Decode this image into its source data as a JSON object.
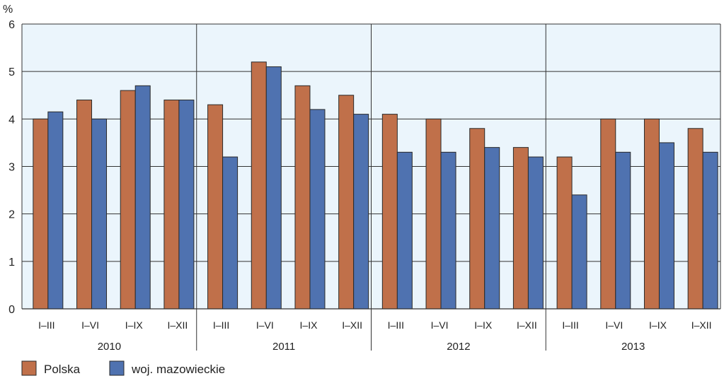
{
  "chart_data": {
    "type": "bar",
    "ylabel": "%",
    "ylim": [
      0,
      6
    ],
    "yticks": [
      "0",
      "1",
      "2",
      "3",
      "4",
      "5",
      "6"
    ],
    "grid": true,
    "legend_position": "bottom-left",
    "groups": [
      {
        "label": "2010",
        "categories": [
          "I–III",
          "I–VI",
          "I–IX",
          "I–XII"
        ]
      },
      {
        "label": "2011",
        "categories": [
          "I–III",
          "I–VI",
          "I–IX",
          "I–XII"
        ]
      },
      {
        "label": "2012",
        "categories": [
          "I–III",
          "I–VI",
          "I–IX",
          "I–XII"
        ]
      },
      {
        "label": "2013",
        "categories": [
          "I–III",
          "I–VI",
          "I–IX",
          "I–XII"
        ]
      }
    ],
    "series": [
      {
        "name": "Polska",
        "color": "#c0704a",
        "values": [
          4.0,
          4.4,
          4.6,
          4.4,
          4.3,
          5.2,
          4.7,
          4.5,
          4.1,
          4.0,
          3.8,
          3.4,
          3.2,
          4.0,
          4.0,
          3.8
        ]
      },
      {
        "name": "woj. mazowieckie",
        "color": "#4f72b0",
        "values": [
          4.15,
          4.0,
          4.7,
          4.4,
          3.2,
          5.1,
          4.2,
          4.1,
          3.3,
          3.3,
          3.4,
          3.2,
          2.4,
          3.3,
          3.5,
          3.3
        ]
      }
    ],
    "plot_background": "#ebf5fc"
  }
}
